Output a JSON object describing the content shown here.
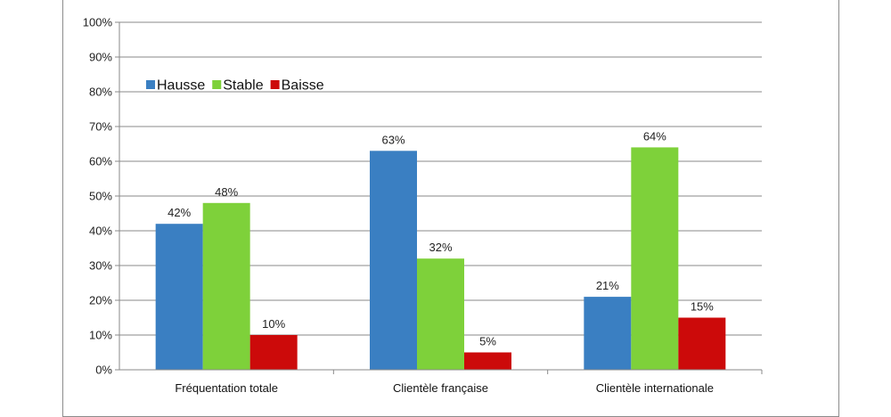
{
  "chart_data": {
    "type": "bar",
    "categories": [
      "Fréquentation totale",
      "Clientèle française",
      "Clientèle internationale"
    ],
    "series": [
      {
        "name": "Hausse",
        "color": "#3a7fc2",
        "values": [
          42,
          63,
          21
        ],
        "labels": [
          "42%",
          "63%",
          "21%"
        ]
      },
      {
        "name": "Stable",
        "color": "#7ed13a",
        "values": [
          48,
          32,
          64
        ],
        "labels": [
          "48%",
          "32%",
          "64%"
        ]
      },
      {
        "name": "Baisse",
        "color": "#cc0a0a",
        "values": [
          10,
          5,
          15
        ],
        "labels": [
          "10%",
          "5%",
          "15%"
        ]
      }
    ],
    "ylim": [
      0,
      100
    ],
    "yticks": [
      0,
      10,
      20,
      30,
      40,
      50,
      60,
      70,
      80,
      90,
      100
    ],
    "ytick_labels": [
      "0%",
      "10%",
      "20%",
      "30%",
      "40%",
      "50%",
      "60%",
      "70%",
      "80%",
      "90%",
      "100%"
    ],
    "grid": true,
    "legend_position": "top-left"
  }
}
